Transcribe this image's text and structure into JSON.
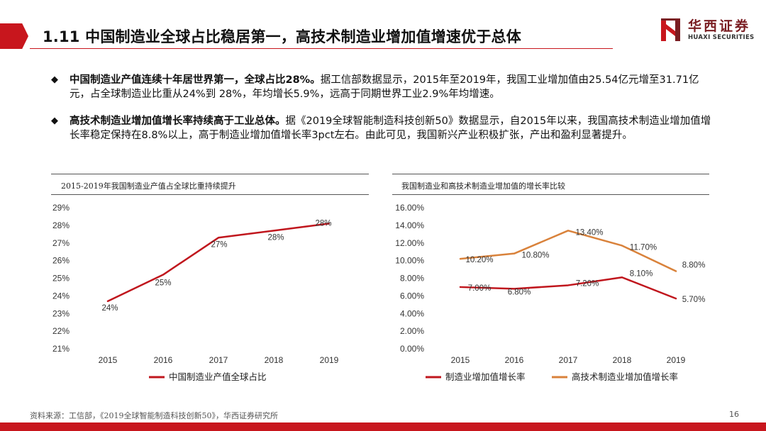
{
  "header": {
    "title": "1.11 中国制造业全球占比稳居第一，高技术制造业增加值增速优于总体"
  },
  "logo": {
    "name_cn": "华西证券",
    "name_en": "HUAXI SECURITIES"
  },
  "bullets": [
    {
      "bold": "中国制造业产值连续十年居世界第一，全球占比28%。",
      "text": "据工信部数据显示，2015年至2019年，我国工业增加值由25.54亿元增至31.71亿元，占全球制造业比重从24%到 28%，年均增长5.9%，远高于同期世界工业2.9%年均增速。"
    },
    {
      "bold": "高技术制造业增加值增长率持续高于工业总体。",
      "text": "据《2019全球智能制造科技创新50》数据显示，自2015年以来，我国高技术制造业增加值增长率稳定保持在8.8%以上，高于制造业增加值增长率3pct左右。由此可见，我国新兴产业积极扩张，产出和盈利显著提升。"
    }
  ],
  "chart_data": [
    {
      "type": "line",
      "title": "2015-2019年我国制造业产值占全球比重持续提升",
      "categories": [
        "2015",
        "2016",
        "2017",
        "2018",
        "2019"
      ],
      "series": [
        {
          "name": "中国制造业产值全球占比",
          "values": [
            24,
            25,
            27,
            28,
            28
          ],
          "plot_values": [
            23.7,
            25.2,
            27.3,
            27.7,
            28.1
          ],
          "labels": [
            "24%",
            "25%",
            "27%",
            "28%",
            "28%"
          ],
          "color": "#c0161d"
        }
      ],
      "ylim": [
        21,
        29
      ],
      "yticks": [
        21,
        22,
        23,
        24,
        25,
        26,
        27,
        28,
        29
      ],
      "ytick_labels": [
        "21%",
        "22%",
        "23%",
        "24%",
        "25%",
        "26%",
        "27%",
        "28%",
        "29%"
      ],
      "xlabel": "",
      "ylabel": "",
      "legend": "bottom"
    },
    {
      "type": "line",
      "title": "我国制造业和高技术制造业增加值的增长率比较",
      "categories": [
        "2015",
        "2016",
        "2017",
        "2018",
        "2019"
      ],
      "series": [
        {
          "name": "制造业增加值增长率",
          "values": [
            7.0,
            6.8,
            7.2,
            8.1,
            5.7
          ],
          "labels": [
            "7.00%",
            "6.80%",
            "7.20%",
            "8.10%",
            "5.70%"
          ],
          "color": "#c0161d"
        },
        {
          "name": "高技术制造业增加值增长率",
          "values": [
            10.2,
            10.8,
            13.4,
            11.7,
            8.8
          ],
          "labels": [
            "10.20%",
            "10.80%",
            "13.40%",
            "11.70%",
            "8.80%"
          ],
          "color": "#d9823b"
        }
      ],
      "ylim": [
        0,
        16
      ],
      "yticks": [
        0,
        2,
        4,
        6,
        8,
        10,
        12,
        14,
        16
      ],
      "ytick_labels": [
        "0.00%",
        "2.00%",
        "4.00%",
        "6.00%",
        "8.00%",
        "10.00%",
        "12.00%",
        "14.00%",
        "16.00%"
      ],
      "xlabel": "",
      "ylabel": "",
      "legend": "bottom"
    }
  ],
  "footer": {
    "source": "资料来源：工信部，《2019全球智能制造科技创新50》，华西证券研究所",
    "page_number": "16"
  },
  "colors": {
    "brand_red": "#c8161d",
    "series_red": "#c0161d",
    "series_orange": "#d9823b"
  }
}
